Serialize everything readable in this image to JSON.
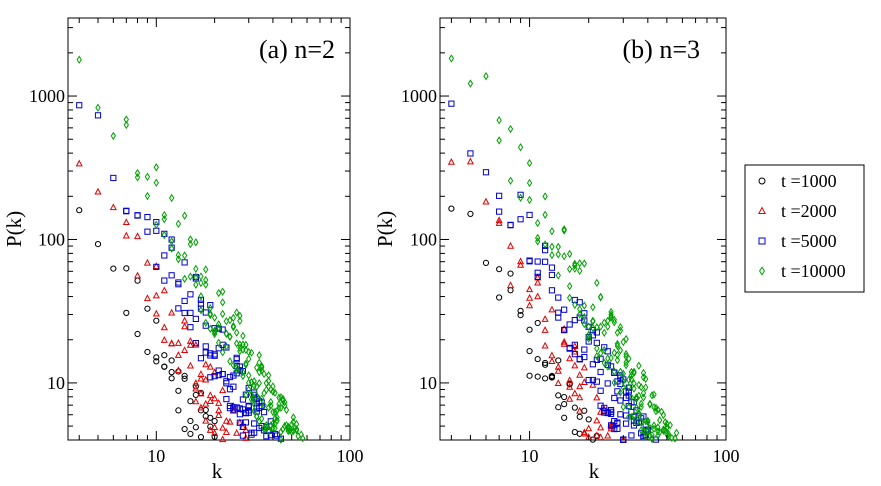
{
  "chart_data": [
    {
      "type": "scatter",
      "panel_label": "(a) n=2",
      "xlabel": "k",
      "ylabel": "P(k)",
      "xscale": "log",
      "yscale": "log",
      "xlim": [
        3.5,
        100
      ],
      "ylim": [
        4,
        3500
      ],
      "xticks": [
        {
          "value": 10,
          "label": "10"
        },
        {
          "value": 100,
          "label": "100"
        }
      ],
      "yticks": [
        {
          "value": 10,
          "label": "10"
        },
        {
          "value": 100,
          "label": "100"
        },
        {
          "value": 1000,
          "label": "1000"
        }
      ],
      "series": [
        {
          "name": "t =1000",
          "marker": "circle",
          "color": "#000000",
          "x0": 3.5,
          "a": 300,
          "gamma": 2.6,
          "seed": 11
        },
        {
          "name": "t =2000",
          "marker": "triangle",
          "color": "#e00000",
          "x0": 3.5,
          "a": 630,
          "gamma": 2.6,
          "seed": 23
        },
        {
          "name": "t =5000",
          "marker": "square",
          "color": "#0000d0",
          "x0": 3.5,
          "a": 1600,
          "gamma": 2.6,
          "seed": 37
        },
        {
          "name": "t =10000",
          "marker": "diamond",
          "color": "#00a000",
          "x0": 3.5,
          "a": 3300,
          "gamma": 2.6,
          "seed": 53
        }
      ]
    },
    {
      "type": "scatter",
      "panel_label": "(b) n=3",
      "xlabel": "k",
      "ylabel": "P(k)",
      "xscale": "log",
      "yscale": "log",
      "xlim": [
        3.5,
        100
      ],
      "ylim": [
        4,
        3500
      ],
      "xticks": [
        {
          "value": 10,
          "label": "10"
        },
        {
          "value": 100,
          "label": "100"
        }
      ],
      "yticks": [
        {
          "value": 10,
          "label": "10"
        },
        {
          "value": 100,
          "label": "100"
        },
        {
          "value": 1000,
          "label": "1000"
        }
      ],
      "series": [
        {
          "name": "t =1000",
          "marker": "circle",
          "color": "#000000",
          "x0": 3.5,
          "a": 300,
          "gamma": 2.6,
          "seed": 71
        },
        {
          "name": "t =2000",
          "marker": "triangle",
          "color": "#e00000",
          "x0": 3.5,
          "a": 630,
          "gamma": 2.6,
          "seed": 83
        },
        {
          "name": "t =5000",
          "marker": "square",
          "color": "#0000d0",
          "x0": 3.5,
          "a": 1600,
          "gamma": 2.6,
          "seed": 97
        },
        {
          "name": "t =10000",
          "marker": "diamond",
          "color": "#00a000",
          "x0": 3.5,
          "a": 3300,
          "gamma": 2.6,
          "seed": 101
        }
      ]
    }
  ],
  "legend": {
    "placement": "right",
    "entries": [
      {
        "label": "t =1000",
        "marker": "circle",
        "color": "#000000"
      },
      {
        "label": "t =2000",
        "marker": "triangle",
        "color": "#e00000"
      },
      {
        "label": "t =5000",
        "marker": "square",
        "color": "#0000d0"
      },
      {
        "label": "t =10000",
        "marker": "diamond",
        "color": "#00a000"
      }
    ]
  }
}
